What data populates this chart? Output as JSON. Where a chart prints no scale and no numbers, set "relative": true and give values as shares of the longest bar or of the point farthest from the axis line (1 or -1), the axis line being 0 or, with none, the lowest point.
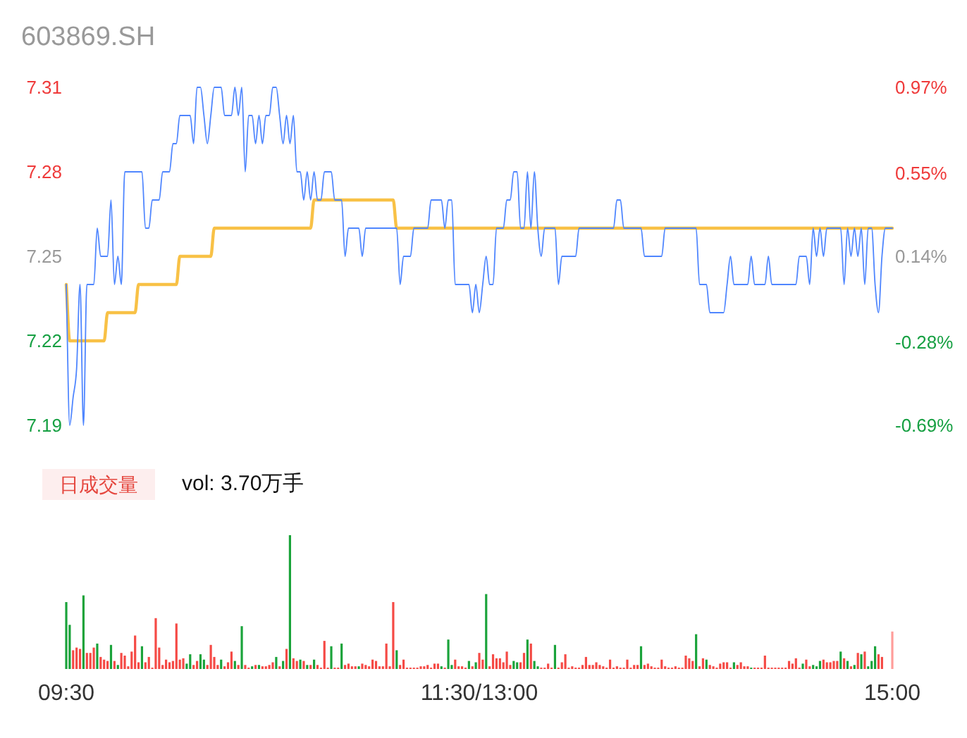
{
  "chart_data": [
    {
      "type": "line",
      "title": "603869.SH",
      "ylim": [
        7.19,
        7.31
      ],
      "yticks": [
        7.19,
        7.22,
        7.25,
        7.28,
        7.31
      ],
      "y2lim": [
        -0.69,
        0.97
      ],
      "y2ticks": [
        {
          "value": -0.69,
          "label": "-0.69%"
        },
        {
          "value": -0.28,
          "label": "-0.28%"
        },
        {
          "value": 0.14,
          "label": "0.14%"
        },
        {
          "value": 0.55,
          "label": "0.55%"
        },
        {
          "value": 0.97,
          "label": "0.97%"
        }
      ],
      "categories": [
        null,
        null,
        null,
        null,
        null,
        null,
        null,
        null,
        null,
        null,
        null,
        null,
        null,
        null,
        null,
        null,
        null,
        null,
        null,
        null,
        null,
        null,
        null,
        null,
        null,
        null,
        null,
        null,
        null,
        null,
        null,
        null,
        null,
        null,
        null,
        null,
        null,
        null,
        null,
        null,
        null,
        null,
        null,
        null,
        null,
        null,
        null,
        null,
        null,
        null,
        null,
        null,
        null,
        null,
        null,
        null,
        null,
        null,
        null,
        null,
        null,
        null,
        null,
        null,
        null,
        null,
        null,
        null,
        null,
        null,
        null,
        null,
        null,
        null,
        null,
        null,
        null,
        null,
        null,
        null,
        null,
        null,
        null,
        null,
        null,
        null,
        null,
        null,
        null,
        null,
        null,
        null,
        null,
        null,
        null,
        null,
        null,
        null,
        null,
        null,
        null,
        null,
        null,
        null,
        null,
        null,
        null,
        null,
        null,
        null,
        null,
        null,
        null,
        null,
        null,
        null,
        null,
        null,
        null,
        null,
        null,
        null,
        null,
        null,
        null,
        null,
        null,
        null,
        null,
        null,
        null,
        null,
        null,
        null,
        null,
        null,
        null,
        null,
        null,
        null,
        null,
        null,
        null,
        null,
        null,
        null,
        null,
        null,
        null,
        null,
        null,
        null,
        null,
        null,
        null,
        null,
        null,
        null,
        null,
        null,
        null,
        null,
        null,
        null,
        null,
        null,
        null,
        null,
        null,
        null,
        null,
        null,
        null,
        null,
        null,
        null,
        null,
        null,
        null,
        null,
        null,
        null,
        null,
        null,
        null,
        null,
        null,
        null,
        null,
        null,
        null,
        null,
        null,
        null,
        null,
        null,
        null,
        null,
        null,
        null,
        null,
        null,
        null,
        null,
        null,
        null,
        null,
        null,
        null,
        null,
        null,
        null,
        null,
        null,
        null,
        null,
        null,
        null,
        null,
        null,
        null,
        null,
        null,
        null,
        null,
        null,
        null,
        null,
        null,
        null,
        null,
        null,
        null,
        null,
        null,
        null,
        null,
        null,
        null,
        null,
        null
      ],
      "series": [
        {
          "type": "line",
          "color": "#4f86ff",
          "values": [
            7.24,
            7.19,
            7.2,
            7.21,
            7.24,
            7.19,
            7.24,
            7.24,
            7.24,
            7.26,
            7.25,
            7.25,
            7.25,
            7.27,
            7.24,
            7.25,
            7.24,
            7.28,
            7.28,
            7.28,
            7.28,
            7.28,
            7.28,
            7.26,
            7.26,
            7.27,
            7.27,
            7.27,
            7.28,
            7.28,
            7.28,
            7.29,
            7.29,
            7.3,
            7.3,
            7.3,
            7.3,
            7.29,
            7.31,
            7.31,
            7.3,
            7.29,
            7.3,
            7.31,
            7.31,
            7.31,
            7.3,
            7.3,
            7.3,
            7.31,
            7.3,
            7.31,
            7.28,
            7.3,
            7.3,
            7.29,
            7.3,
            7.29,
            7.3,
            7.3,
            7.31,
            7.31,
            7.3,
            7.29,
            7.3,
            7.29,
            7.3,
            7.28,
            7.28,
            7.27,
            7.28,
            7.27,
            7.28,
            7.27,
            7.27,
            7.28,
            7.28,
            7.28,
            7.27,
            7.27,
            7.27,
            7.25,
            7.26,
            7.26,
            7.26,
            7.26,
            7.25,
            7.26,
            7.26,
            7.26,
            7.26,
            7.26,
            7.26,
            7.26,
            7.26,
            7.26,
            7.26,
            7.24,
            7.25,
            7.25,
            7.25,
            7.26,
            7.26,
            7.26,
            7.26,
            7.26,
            7.27,
            7.27,
            7.27,
            7.27,
            7.26,
            7.27,
            7.27,
            7.24,
            7.24,
            7.24,
            7.24,
            7.24,
            7.23,
            7.24,
            7.23,
            7.24,
            7.25,
            7.24,
            7.24,
            7.26,
            7.26,
            7.26,
            7.27,
            7.27,
            7.28,
            7.28,
            7.26,
            7.26,
            7.28,
            7.26,
            7.28,
            7.26,
            7.25,
            7.26,
            7.26,
            7.26,
            7.26,
            7.24,
            7.25,
            7.25,
            7.25,
            7.25,
            7.25,
            7.26,
            7.26,
            7.26,
            7.26,
            7.26,
            7.26,
            7.26,
            7.26,
            7.26,
            7.26,
            7.26,
            7.27,
            7.27,
            7.26,
            7.26,
            7.26,
            7.26,
            7.26,
            7.26,
            7.25,
            7.25,
            7.25,
            7.25,
            7.25,
            7.25,
            7.26,
            7.26,
            7.26,
            7.26,
            7.26,
            7.26,
            7.26,
            7.26,
            7.26,
            7.26,
            7.24,
            7.24,
            7.24,
            7.23,
            7.23,
            7.23,
            7.23,
            7.23,
            7.24,
            7.25,
            7.24,
            7.24,
            7.24,
            7.24,
            7.24,
            7.25,
            7.24,
            7.24,
            7.24,
            7.24,
            7.25,
            7.24,
            7.24,
            7.24,
            7.24,
            7.24,
            7.24,
            7.24,
            7.24,
            7.25,
            7.25,
            7.25,
            7.24,
            7.26,
            7.25,
            7.26,
            7.25,
            7.26,
            7.26,
            7.26,
            7.26,
            7.26,
            7.24,
            7.26,
            7.25,
            7.26,
            7.25,
            7.26,
            7.24,
            7.26,
            7.26,
            7.24,
            7.23,
            7.25,
            7.26,
            7.26,
            7.26
          ]
        },
        {
          "type": "line",
          "color": "#f8c146",
          "values": [
            7.24,
            7.22,
            7.22,
            7.22,
            7.22,
            7.22,
            7.22,
            7.22,
            7.22,
            7.22,
            7.22,
            7.22,
            7.23,
            7.23,
            7.23,
            7.23,
            7.23,
            7.23,
            7.23,
            7.23,
            7.23,
            7.24,
            7.24,
            7.24,
            7.24,
            7.24,
            7.24,
            7.24,
            7.24,
            7.24,
            7.24,
            7.24,
            7.24,
            7.25,
            7.25,
            7.25,
            7.25,
            7.25,
            7.25,
            7.25,
            7.25,
            7.25,
            7.25,
            7.26,
            7.26,
            7.26,
            7.26,
            7.26,
            7.26,
            7.26,
            7.26,
            7.26,
            7.26,
            7.26,
            7.26,
            7.26,
            7.26,
            7.26,
            7.26,
            7.26,
            7.26,
            7.26,
            7.26,
            7.26,
            7.26,
            7.26,
            7.26,
            7.26,
            7.26,
            7.26,
            7.26,
            7.26,
            7.27,
            7.27,
            7.27,
            7.27,
            7.27,
            7.27,
            7.27,
            7.27,
            7.27,
            7.27,
            7.27,
            7.27,
            7.27,
            7.27,
            7.27,
            7.27,
            7.27,
            7.27,
            7.27,
            7.27,
            7.27,
            7.27,
            7.27,
            7.27,
            7.26,
            7.26,
            7.26,
            7.26,
            7.26,
            7.26,
            7.26,
            7.26,
            7.26,
            7.26,
            7.26,
            7.26,
            7.26,
            7.26,
            7.26,
            7.26,
            7.26,
            7.26,
            7.26,
            7.26,
            7.26,
            7.26,
            7.26,
            7.26,
            7.26,
            7.26,
            7.26,
            7.26,
            7.26,
            7.26,
            7.26,
            7.26,
            7.26,
            7.26,
            7.26,
            7.26,
            7.26,
            7.26,
            7.26,
            7.26,
            7.26,
            7.26,
            7.26,
            7.26,
            7.26,
            7.26,
            7.26,
            7.26,
            7.26,
            7.26,
            7.26,
            7.26,
            7.26,
            7.26,
            7.26,
            7.26,
            7.26,
            7.26,
            7.26,
            7.26,
            7.26,
            7.26,
            7.26,
            7.26,
            7.26,
            7.26,
            7.26,
            7.26,
            7.26,
            7.26,
            7.26,
            7.26,
            7.26,
            7.26,
            7.26,
            7.26,
            7.26,
            7.26,
            7.26,
            7.26,
            7.26,
            7.26,
            7.26,
            7.26,
            7.26,
            7.26,
            7.26,
            7.26,
            7.26,
            7.26,
            7.26,
            7.26,
            7.26,
            7.26,
            7.26,
            7.26,
            7.26,
            7.26,
            7.26,
            7.26,
            7.26,
            7.26,
            7.26,
            7.26,
            7.26,
            7.26,
            7.26,
            7.26,
            7.26,
            7.26,
            7.26,
            7.26,
            7.26,
            7.26,
            7.26,
            7.26,
            7.26,
            7.26,
            7.26,
            7.26,
            7.26,
            7.26,
            7.26,
            7.26,
            7.26,
            7.26,
            7.26,
            7.26,
            7.26,
            7.26,
            7.26,
            7.26,
            7.26,
            7.26,
            7.26,
            7.26,
            7.26,
            7.26,
            7.26,
            7.26,
            7.26,
            7.26,
            7.26,
            7.26,
            7.26
          ]
        }
      ]
    },
    {
      "type": "bar",
      "title": "日成交量",
      "annotations": [
        "vol: 3.70万手"
      ],
      "relative": true,
      "tick_labels": "x",
      "categories": [
        "09:30",
        null,
        null,
        null,
        null,
        null,
        null,
        null,
        null,
        null,
        null,
        null,
        null,
        null,
        null,
        null,
        null,
        null,
        null,
        null,
        null,
        null,
        null,
        null,
        null,
        null,
        null,
        null,
        null,
        null,
        null,
        null,
        null,
        null,
        null,
        null,
        null,
        null,
        null,
        null,
        null,
        null,
        null,
        null,
        null,
        null,
        null,
        null,
        null,
        null,
        null,
        null,
        null,
        null,
        null,
        null,
        null,
        null,
        null,
        null,
        null,
        null,
        null,
        null,
        null,
        null,
        null,
        null,
        null,
        null,
        null,
        null,
        null,
        null,
        null,
        null,
        null,
        null,
        null,
        null,
        null,
        null,
        null,
        null,
        null,
        null,
        null,
        null,
        null,
        null,
        null,
        null,
        null,
        null,
        null,
        null,
        null,
        null,
        null,
        null,
        null,
        null,
        null,
        null,
        null,
        null,
        null,
        null,
        null,
        null,
        null,
        null,
        null,
        null,
        null,
        null,
        null,
        null,
        null,
        null,
        "11:30/13:00",
        null,
        null,
        null,
        null,
        null,
        null,
        null,
        null,
        null,
        null,
        null,
        null,
        null,
        null,
        null,
        null,
        null,
        null,
        null,
        null,
        null,
        null,
        null,
        null,
        null,
        null,
        null,
        null,
        null,
        null,
        null,
        null,
        null,
        null,
        null,
        null,
        null,
        null,
        null,
        null,
        null,
        null,
        null,
        null,
        null,
        null,
        null,
        null,
        null,
        null,
        null,
        null,
        null,
        null,
        null,
        null,
        null,
        null,
        null,
        null,
        null,
        null,
        null,
        null,
        null,
        null,
        null,
        null,
        null,
        null,
        null,
        null,
        null,
        null,
        null,
        null,
        null,
        null,
        null,
        null,
        null,
        null,
        null,
        null,
        null,
        null,
        null,
        null,
        null,
        null,
        null,
        null,
        null,
        null,
        null,
        null,
        null,
        null,
        null,
        null,
        null,
        null,
        null,
        null,
        null,
        null,
        null,
        null,
        null,
        null,
        null,
        null,
        null,
        null,
        null,
        null,
        null,
        null,
        null,
        "15:00"
      ],
      "values": [
        0.5,
        0.33,
        0.14,
        0.16,
        0.15,
        0.55,
        0.12,
        0.12,
        0.16,
        0.19,
        0.09,
        0.07,
        0.06,
        0.18,
        0.06,
        0.03,
        0.12,
        0.1,
        0.02,
        0.13,
        0.25,
        0.05,
        0.17,
        0.05,
        0.09,
        0.01,
        0.38,
        0.16,
        0.03,
        0.07,
        0.05,
        0.06,
        0.34,
        0.07,
        0.08,
        0.04,
        0.11,
        0.03,
        0.06,
        0.11,
        0.07,
        0.03,
        0.18,
        0.09,
        0.03,
        0.07,
        0.02,
        0.05,
        0.13,
        0.06,
        0.03,
        0.32,
        0.03,
        0.01,
        0.02,
        0.03,
        0.03,
        0.02,
        0.02,
        0.03,
        0.05,
        0.09,
        0.02,
        0.06,
        0.15,
        1,
        0.08,
        0.06,
        0.07,
        0.06,
        0.03,
        0.03,
        0.07,
        0.03,
        0.01,
        0.21,
        0.01,
        0.17,
        0.01,
        0.01,
        0.19,
        0.03,
        0.04,
        0.02,
        0.02,
        0.02,
        0.04,
        0.03,
        0.02,
        0.07,
        0.06,
        0.02,
        0.02,
        0.19,
        0.02,
        0.5,
        0.14,
        0.03,
        0.07,
        0.01,
        0.01,
        0.01,
        0.01,
        0.02,
        0.02,
        0.03,
        0.01,
        0.04,
        0.04,
        0.02,
        0.01,
        0.22,
        0.03,
        0.07,
        0.02,
        0.02,
        0.01,
        0.06,
        0.02,
        0.05,
        0.12,
        0.07,
        0.56,
        0.02,
        0.11,
        0.08,
        0.08,
        0.05,
        0.13,
        0.03,
        0.06,
        0.05,
        0.05,
        0.12,
        0.22,
        0.19,
        0.06,
        0.02,
        0.01,
        0.01,
        0.04,
        0.01,
        0.18,
        0.01,
        0.05,
        0.11,
        0.01,
        0.02,
        0.01,
        0.01,
        0.03,
        0.09,
        0.03,
        0.03,
        0.05,
        0.03,
        0.02,
        0.01,
        0.07,
        0.01,
        0.02,
        0.01,
        0.01,
        0.07,
        0.01,
        0.03,
        0.03,
        0.17,
        0.03,
        0.04,
        0.02,
        0.01,
        0.01,
        0.07,
        0.02,
        0.01,
        0.01,
        0.02,
        0.01,
        0.01,
        0.1,
        0.08,
        0.06,
        0.26,
        0.02,
        0.08,
        0.07,
        0.03,
        0.02,
        0.01,
        0.04,
        0.05,
        0.05,
        0.01,
        0.05,
        0.03,
        0.05,
        0.02,
        0.02,
        0.01,
        0.01,
        0.01,
        0.01,
        0.1,
        0.01,
        0.01,
        0.01,
        0.01,
        0.01,
        0.01,
        0.06,
        0.04,
        0.08,
        0.01,
        0.04,
        0.07,
        0.02,
        0.03,
        0.02,
        0.06,
        0.07,
        0.05,
        0.05,
        0.06,
        0.06,
        0.13,
        0.08,
        0.06,
        0.02,
        0.03,
        0.12,
        0.11,
        0.13,
        0.02,
        0.06,
        0.17,
        0.11,
        0.09,
        null,
        null,
        0.28
      ],
      "colors": [
        "#1aa33a",
        "#1aa33a",
        "#f54a45",
        "#f54a45",
        "#f54a45",
        "#1aa33a",
        "#f54a45",
        "#f54a45",
        "#f54a45",
        "#1aa33a",
        "#f54a45",
        "#f54a45",
        "#f54a45",
        "#1aa33a",
        "#f54a45",
        "#1aa33a",
        "#f54a45",
        "#f54a45",
        "#f54a45",
        "#f54a45",
        "#f54a45",
        "#f54a45",
        "#1aa33a",
        "#f54a45",
        "#f54a45",
        "#f54a45",
        "#f54a45",
        "#f54a45",
        "#f54a45",
        "#f54a45",
        "#f54a45",
        "#f54a45",
        "#f54a45",
        "#f54a45",
        "#f54a45",
        "#1aa33a",
        "#1aa33a",
        "#f54a45",
        "#f54a45",
        "#1aa33a",
        "#1aa33a",
        "#f54a45",
        "#f54a45",
        "#f54a45",
        "#f54a45",
        "#1aa33a",
        "#f54a45",
        "#f54a45",
        "#f54a45",
        "#1aa33a",
        "#f54a45",
        "#1aa33a",
        "#f54a45",
        "#f54a45",
        "#1aa33a",
        "#f54a45",
        "#1aa33a",
        "#f54a45",
        "#f54a45",
        "#f54a45",
        "#f54a45",
        "#1aa33a",
        "#f54a45",
        "#1aa33a",
        "#f54a45",
        "#1aa33a",
        "#f54a45",
        "#f54a45",
        "#1aa33a",
        "#f54a45",
        "#1aa33a",
        "#f54a45",
        "#1aa33a",
        "#f54a45",
        "#f54a45",
        "#f54a45",
        "#f54a45",
        "#1aa33a",
        "#f54a45",
        "#f54a45",
        "#1aa33a",
        "#f54a45",
        "#f54a45",
        "#f54a45",
        "#f54a45",
        "#1aa33a",
        "#f54a45",
        "#f54a45",
        "#f54a45",
        "#f54a45",
        "#f54a45",
        "#f54a45",
        "#f54a45",
        "#f54a45",
        "#f54a45",
        "#f54a45",
        "#1aa33a",
        "#f54a45",
        "#f54a45",
        "#f54a45",
        "#f54a45",
        "#f54a45",
        "#f54a45",
        "#f54a45",
        "#f54a45",
        "#f54a45",
        "#f54a45",
        "#f54a45",
        "#f54a45",
        "#1aa33a",
        "#f54a45",
        "#1aa33a",
        "#1aa33a",
        "#f54a45",
        "#f54a45",
        "#f54a45",
        "#f54a45",
        "#1aa33a",
        "#f54a45",
        "#1aa33a",
        "#f54a45",
        "#f54a45",
        "#1aa33a",
        "#f54a45",
        "#f54a45",
        "#f54a45",
        "#f54a45",
        "#f54a45",
        "#f54a45",
        "#f54a45",
        "#1aa33a",
        "#1aa33a",
        "#f54a45",
        "#f54a45",
        "#1aa33a",
        "#f54a45",
        "#1aa33a",
        "#1aa33a",
        "#f54a45",
        "#f54a45",
        "#f54a45",
        "#f54a45",
        "#1aa33a",
        "#f54a45",
        "#f54a45",
        "#f54a45",
        "#f54a45",
        "#f54a45",
        "#f54a45",
        "#f54a45",
        "#f54a45",
        "#f54a45",
        "#f54a45",
        "#f54a45",
        "#f54a45",
        "#f54a45",
        "#f54a45",
        "#f54a45",
        "#f54a45",
        "#f54a45",
        "#f54a45",
        "#f54a45",
        "#f54a45",
        "#f54a45",
        "#f54a45",
        "#f54a45",
        "#f54a45",
        "#1aa33a",
        "#f54a45",
        "#f54a45",
        "#f54a45",
        "#f54a45",
        "#f54a45",
        "#f54a45",
        "#f54a45",
        "#f54a45",
        "#f54a45",
        "#f54a45",
        "#f54a45",
        "#f54a45",
        "#f54a45",
        "#f54a45",
        "#f54a45",
        "#1aa33a",
        "#f54a45",
        "#f54a45",
        "#1aa33a",
        "#f54a45",
        "#f54a45",
        "#f54a45",
        "#f54a45",
        "#f54a45",
        "#f54a45",
        "#f54a45",
        "#1aa33a",
        "#f54a45",
        "#f54a45",
        "#f54a45",
        "#f54a45",
        "#1aa33a",
        "#f54a45",
        "#f54a45",
        "#f54a45",
        "#f54a45",
        "#f54a45",
        "#f54a45",
        "#f54a45",
        "#f54a45",
        "#f54a45",
        "#f54a45",
        "#f54a45",
        "#f54a45",
        "#f54a45",
        "#f54a45",
        "#1aa33a",
        "#f54a45",
        "#f54a45",
        "#1aa33a",
        "#1aa33a",
        "#1aa33a",
        "#f54a45",
        "#f54a45",
        "#f54a45",
        "#f54a45",
        "#f54a45",
        "#1aa33a",
        "#f54a45",
        "#1aa33a",
        "#f54a45",
        "#1aa33a",
        "#f54a45",
        "#1aa33a",
        "#f54a45",
        "#1aa33a",
        "#1aa33a",
        "#1aa33a",
        "#f54a45",
        "#f54a45",
        null,
        null,
        "#ff9d9a"
      ]
    }
  ]
}
